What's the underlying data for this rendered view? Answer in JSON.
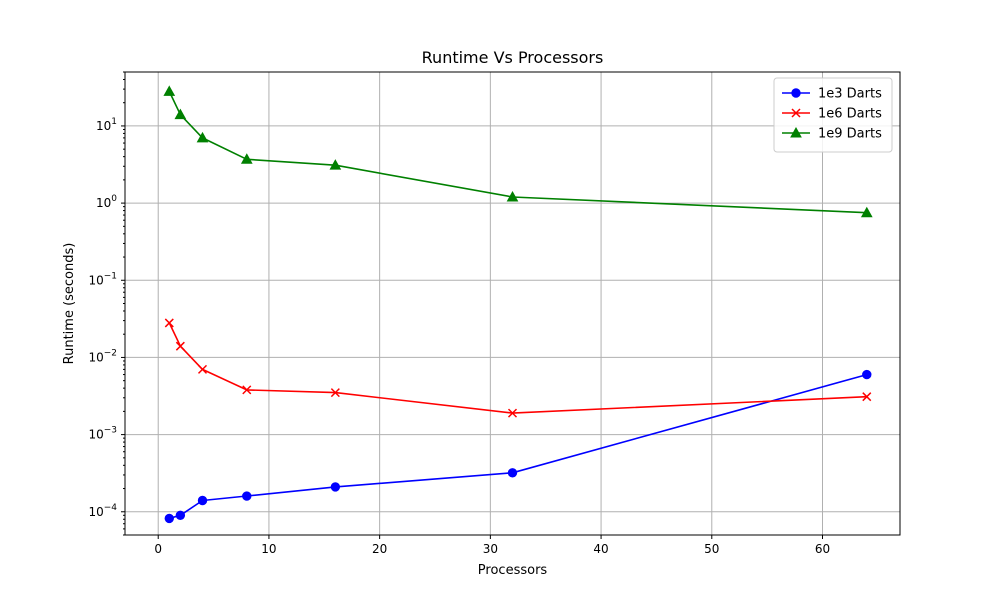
{
  "chart_data": {
    "type": "line",
    "title": "Runtime Vs Processors",
    "xlabel": "Processors",
    "ylabel": "Runtime (seconds)",
    "yscale": "log",
    "xlim": [
      -3,
      67
    ],
    "ylim": [
      5e-05,
      50
    ],
    "xticks": [
      0,
      10,
      20,
      30,
      40,
      50,
      60
    ],
    "xtick_labels": [
      "0",
      "10",
      "20",
      "30",
      "40",
      "50",
      "60"
    ],
    "yticks": [
      0.0001,
      0.001,
      0.01,
      0.1,
      1,
      10
    ],
    "ytick_labels": [
      {
        "base": "10",
        "exp": "−4"
      },
      {
        "base": "10",
        "exp": "−3"
      },
      {
        "base": "10",
        "exp": "−2"
      },
      {
        "base": "10",
        "exp": "−1"
      },
      {
        "base": "10",
        "exp": "0"
      },
      {
        "base": "10",
        "exp": "1"
      }
    ],
    "grid": true,
    "legend_position": "top-right",
    "x": [
      1,
      2,
      4,
      8,
      16,
      32,
      64
    ],
    "series": [
      {
        "name": "1e3 Darts",
        "color": "#0000ff",
        "marker": "circle",
        "values": [
          8.2e-05,
          9e-05,
          0.00014,
          0.00016,
          0.00021,
          0.00032,
          0.006
        ]
      },
      {
        "name": "1e6 Darts",
        "color": "#ff0000",
        "marker": "x",
        "values": [
          0.028,
          0.014,
          0.007,
          0.0038,
          0.0035,
          0.0019,
          0.0031
        ]
      },
      {
        "name": "1e9 Darts",
        "color": "#008000",
        "marker": "triangle",
        "values": [
          28,
          14,
          7,
          3.7,
          3.1,
          1.2,
          0.75
        ]
      }
    ]
  }
}
